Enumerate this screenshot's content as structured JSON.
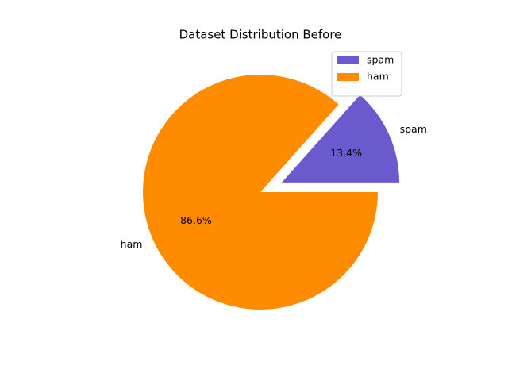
{
  "chart_data": {
    "type": "pie",
    "title": "Dataset Distribution Before",
    "categories": [
      "spam",
      "ham"
    ],
    "values": [
      13.4,
      86.6
    ],
    "value_labels": [
      "13.4%",
      "86.6%"
    ],
    "colors": [
      "#6a5acd",
      "#ff8c00"
    ],
    "explode": [
      0.2,
      0
    ],
    "legend": "upper right"
  }
}
